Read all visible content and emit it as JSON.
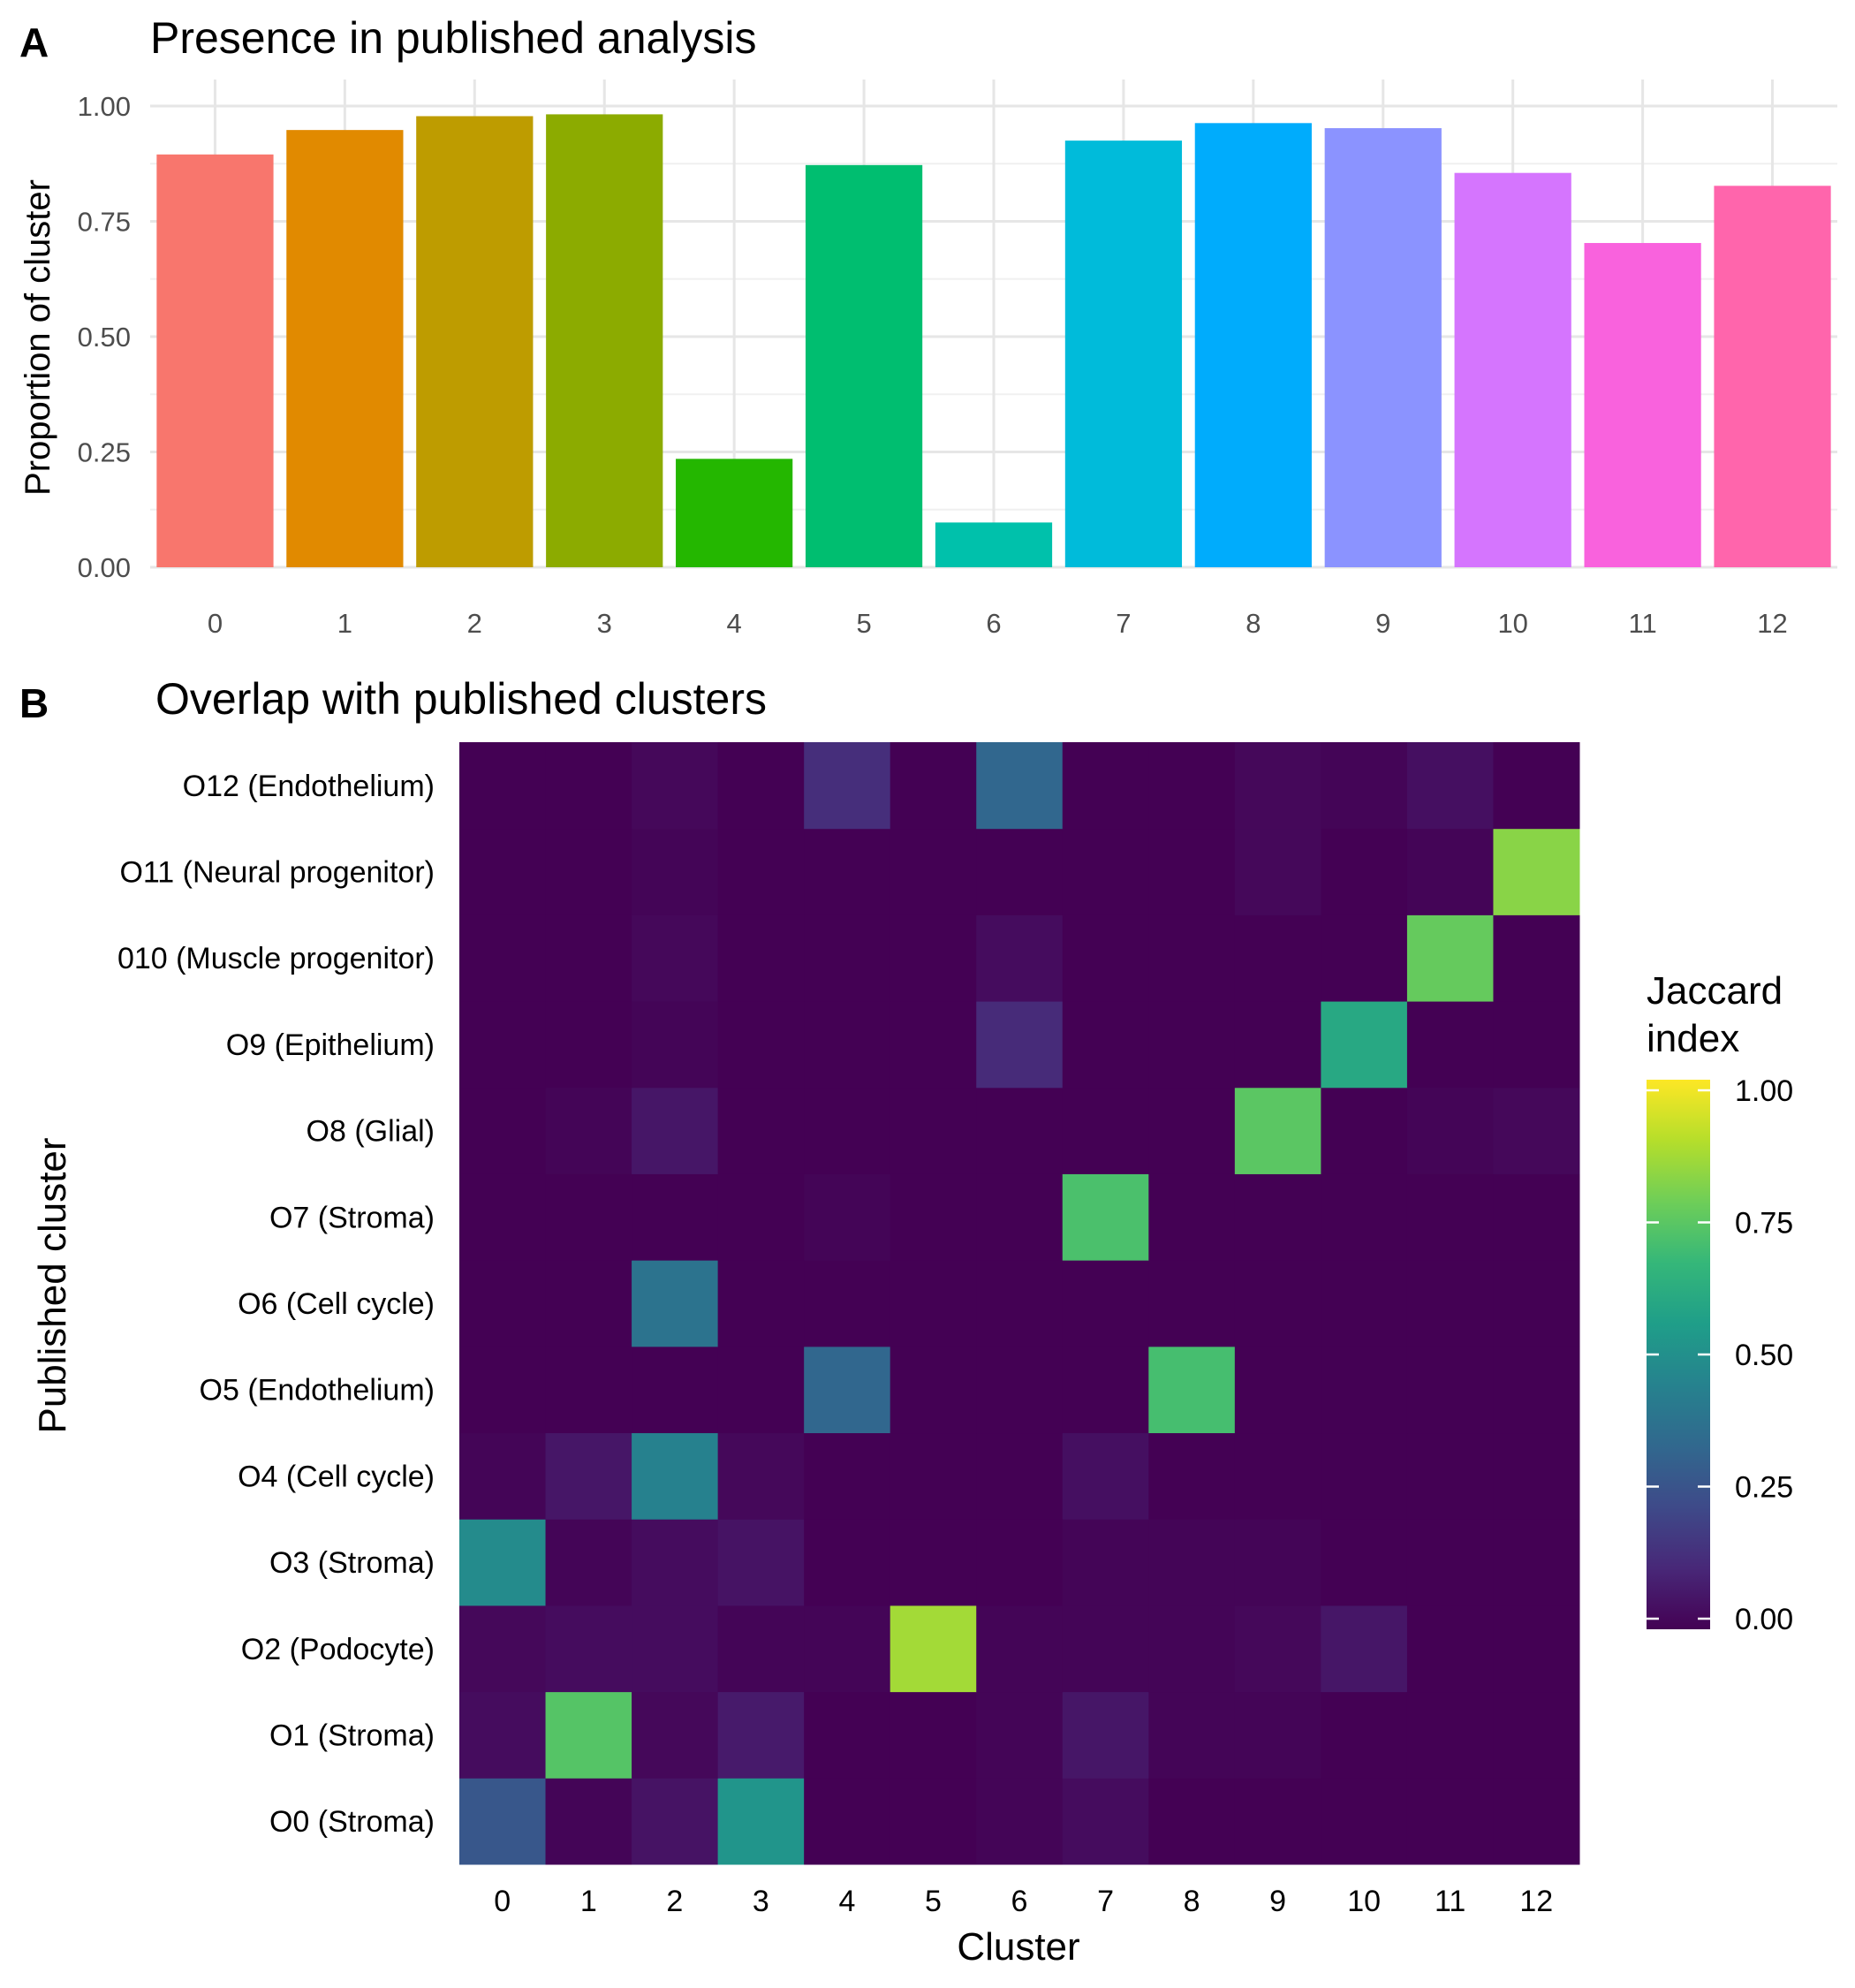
{
  "panels": {
    "a": {
      "letter": "A"
    },
    "b": {
      "letter": "B"
    }
  },
  "chart_data": [
    {
      "type": "bar",
      "title": "Presence in published analysis",
      "xlabel": "",
      "ylabel": "Proportion of cluster",
      "categories": [
        "0",
        "1",
        "2",
        "3",
        "4",
        "5",
        "6",
        "7",
        "8",
        "9",
        "10",
        "11",
        "12"
      ],
      "values": [
        0.895,
        0.948,
        0.978,
        0.982,
        0.235,
        0.872,
        0.097,
        0.925,
        0.963,
        0.952,
        0.855,
        0.703,
        0.827
      ],
      "colors": [
        "#F8766D",
        "#E18A00",
        "#BE9C00",
        "#8CAB00",
        "#24B700",
        "#00BE70",
        "#00C1AB",
        "#00BBDA",
        "#00ACFC",
        "#8B93FF",
        "#D575FE",
        "#F962DD",
        "#FF65AC"
      ],
      "ylim": [
        0,
        1
      ],
      "yticks": [
        "0.00",
        "0.25",
        "0.50",
        "0.75",
        "1.00"
      ],
      "grid": true,
      "legend": "none"
    },
    {
      "type": "heatmap",
      "title": "Overlap with published clusters",
      "xlabel": "Cluster",
      "ylabel": "Published cluster",
      "x_categories": [
        "0",
        "1",
        "2",
        "3",
        "4",
        "5",
        "6",
        "7",
        "8",
        "9",
        "10",
        "11",
        "12"
      ],
      "y_categories": [
        "O0 (Stroma)",
        "O1 (Stroma)",
        "O2 (Podocyte)",
        "O3 (Stroma)",
        "O4 (Cell cycle)",
        "O5 (Endothelium)",
        "O6 (Cell cycle)",
        "O7 (Stroma)",
        "O8 (Glial)",
        "O9 (Epithelium)",
        "010 (Muscle progenitor)",
        "O11 (Neural progenitor)",
        "O12 (Endothelium)"
      ],
      "values": [
        [
          0.27,
          0.01,
          0.05,
          0.52,
          0.0,
          0.0,
          0.01,
          0.03,
          0.0,
          0.0,
          0.0,
          0.0,
          0.0
        ],
        [
          0.03,
          0.73,
          0.02,
          0.07,
          0.0,
          0.0,
          0.01,
          0.06,
          0.01,
          0.01,
          0.0,
          0.0,
          0.0
        ],
        [
          0.02,
          0.03,
          0.03,
          0.01,
          0.01,
          0.86,
          0.01,
          0.01,
          0.01,
          0.02,
          0.06,
          0.0,
          0.0
        ],
        [
          0.48,
          0.01,
          0.03,
          0.05,
          0.0,
          0.0,
          0.0,
          0.01,
          0.01,
          0.01,
          0.0,
          0.0,
          0.0
        ],
        [
          0.01,
          0.06,
          0.44,
          0.02,
          0.0,
          0.0,
          0.0,
          0.04,
          0.0,
          0.0,
          0.0,
          0.0,
          0.0
        ],
        [
          0.0,
          0.0,
          0.0,
          0.0,
          0.33,
          0.0,
          0.0,
          0.0,
          0.7,
          0.0,
          0.0,
          0.0,
          0.0
        ],
        [
          0.0,
          0.0,
          0.38,
          0.0,
          0.0,
          0.0,
          0.0,
          0.0,
          0.0,
          0.0,
          0.0,
          0.0,
          0.0
        ],
        [
          0.0,
          0.0,
          0.0,
          0.0,
          0.01,
          0.0,
          0.0,
          0.71,
          0.0,
          0.0,
          0.0,
          0.0,
          0.0
        ],
        [
          0.0,
          0.01,
          0.06,
          0.0,
          0.0,
          0.0,
          0.0,
          0.0,
          0.0,
          0.74,
          0.0,
          0.01,
          0.02
        ],
        [
          0.0,
          0.0,
          0.01,
          0.0,
          0.0,
          0.0,
          0.12,
          0.0,
          0.0,
          0.0,
          0.6,
          0.0,
          0.0
        ],
        [
          0.0,
          0.0,
          0.02,
          0.0,
          0.0,
          0.0,
          0.03,
          0.0,
          0.0,
          0.0,
          0.0,
          0.76,
          0.0
        ],
        [
          0.0,
          0.0,
          0.01,
          0.0,
          0.0,
          0.0,
          0.0,
          0.0,
          0.0,
          0.02,
          0.0,
          0.01,
          0.82
        ],
        [
          0.0,
          0.0,
          0.02,
          0.0,
          0.13,
          0.0,
          0.33,
          0.0,
          0.0,
          0.02,
          0.01,
          0.04,
          0.0
        ]
      ],
      "colorscale": "viridis",
      "legend": {
        "title_lines": [
          "Jaccard",
          "index"
        ],
        "ticks": [
          "0.00",
          "0.25",
          "0.50",
          "0.75",
          "1.00"
        ],
        "range": [
          0,
          1
        ],
        "placement": "right"
      }
    }
  ]
}
